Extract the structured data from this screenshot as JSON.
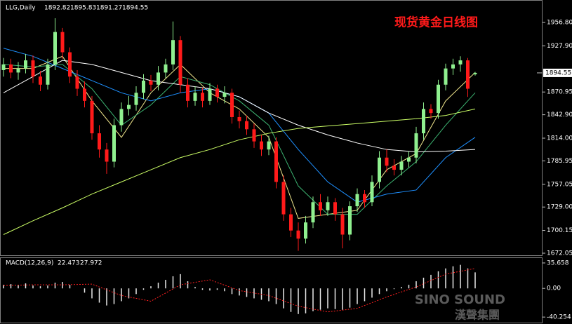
{
  "chart_data": {
    "type": "candlestick",
    "title": "现货黄金日线图",
    "symbol": "LLG,Daily",
    "up_color": "#8ff08f",
    "down_color": "#ff1a1a",
    "open": [
      1898,
      1905,
      1895,
      1900,
      1910,
      1890,
      1880,
      1905,
      1945,
      1920,
      1890,
      1875,
      1860,
      1820,
      1800,
      1785,
      1830,
      1850,
      1855,
      1870,
      1885,
      1880,
      1895,
      1905,
      1935,
      1880,
      1860,
      1870,
      1860,
      1875,
      1865,
      1870,
      1840,
      1835,
      1825,
      1810,
      1800,
      1810,
      1760,
      1720,
      1700,
      1690,
      1710,
      1735,
      1725,
      1735,
      1720,
      1695,
      1730,
      1745,
      1735,
      1760,
      1790,
      1780,
      1775,
      1785,
      1790,
      1820,
      1850,
      1845,
      1880,
      1900,
      1905,
      1910,
      1892.82
    ],
    "high": [
      1913,
      1912,
      1908,
      1918,
      1916,
      1897,
      1912,
      1962,
      1950,
      1926,
      1898,
      1884,
      1866,
      1830,
      1808,
      1838,
      1858,
      1866,
      1878,
      1893,
      1892,
      1903,
      1912,
      1958,
      1940,
      1888,
      1878,
      1876,
      1882,
      1880,
      1878,
      1875,
      1848,
      1842,
      1832,
      1818,
      1817,
      1815,
      1768,
      1728,
      1710,
      1718,
      1742,
      1745,
      1742,
      1740,
      1728,
      1736,
      1752,
      1750,
      1768,
      1798,
      1800,
      1788,
      1792,
      1798,
      1828,
      1858,
      1856,
      1886,
      1906,
      1912,
      1915,
      1913,
      1895.83
    ],
    "low": [
      1890,
      1888,
      1886,
      1894,
      1882,
      1872,
      1874,
      1898,
      1912,
      1882,
      1866,
      1852,
      1812,
      1790,
      1770,
      1778,
      1822,
      1842,
      1848,
      1862,
      1872,
      1873,
      1888,
      1898,
      1870,
      1852,
      1854,
      1852,
      1855,
      1858,
      1857,
      1832,
      1826,
      1818,
      1802,
      1792,
      1793,
      1752,
      1712,
      1692,
      1675,
      1684,
      1703,
      1718,
      1718,
      1712,
      1678,
      1688,
      1723,
      1728,
      1730,
      1752,
      1772,
      1768,
      1768,
      1778,
      1783,
      1812,
      1838,
      1838,
      1873,
      1892,
      1896,
      1865,
      1891.27
    ],
    "close": [
      1905,
      1895,
      1900,
      1910,
      1890,
      1880,
      1905,
      1945,
      1920,
      1890,
      1875,
      1860,
      1820,
      1800,
      1785,
      1830,
      1850,
      1855,
      1870,
      1885,
      1880,
      1895,
      1905,
      1935,
      1880,
      1860,
      1870,
      1860,
      1875,
      1865,
      1870,
      1840,
      1835,
      1825,
      1810,
      1800,
      1810,
      1760,
      1720,
      1700,
      1690,
      1710,
      1735,
      1725,
      1735,
      1720,
      1695,
      1730,
      1745,
      1735,
      1760,
      1790,
      1780,
      1775,
      1785,
      1790,
      1820,
      1850,
      1845,
      1880,
      1900,
      1905,
      1910,
      1875,
      1894.55
    ],
    "ylim": [
      1668.6,
      1984.5
    ],
    "yticks": [
      {
        "value": 1956.8,
        "label": "1956.80"
      },
      {
        "value": 1927.9,
        "label": "1927.90"
      },
      1870.95,
      {
        "value": 1842.9,
        "label": "1842.90"
      },
      {
        "value": 1814,
        "label": "1814.00"
      },
      1785.95,
      1757.05,
      {
        "value": 1729,
        "label": "1729.00"
      },
      1700.15,
      1672.05
    ],
    "overlay": {
      "x": [
        0,
        4,
        8,
        12,
        16,
        20,
        24,
        28,
        32,
        36,
        40,
        44,
        48,
        52,
        56,
        60,
        64
      ],
      "series": [
        {
          "color": "#f0e68c",
          "values": [
            1900,
            1900,
            1915,
            1860,
            1815,
            1870,
            1905,
            1870,
            1850,
            1815,
            1715,
            1720,
            1725,
            1775,
            1795,
            1860,
            1895
          ]
        },
        {
          "color": "#3cb371",
          "values": [
            1905,
            1902,
            1905,
            1875,
            1830,
            1855,
            1890,
            1880,
            1860,
            1830,
            1755,
            1720,
            1720,
            1755,
            1785,
            1830,
            1870
          ]
        },
        {
          "color": "#1e90ff",
          "values": [
            1925,
            1915,
            1900,
            1885,
            1870,
            1860,
            1870,
            1875,
            1865,
            1845,
            1800,
            1760,
            1735,
            1745,
            1750,
            1790,
            1815
          ]
        },
        {
          "color": "#ffffff",
          "values": [
            1870,
            1890,
            1910,
            1905,
            1895,
            1885,
            1880,
            1875,
            1865,
            1845,
            1830,
            1818,
            1808,
            1800,
            1797,
            1798,
            1800
          ]
        },
        {
          "color": "#ccff66",
          "values": [
            1695,
            1712,
            1728,
            1745,
            1760,
            1775,
            1790,
            1800,
            1812,
            1820,
            1826,
            1829,
            1832,
            1835,
            1838,
            1842,
            1850
          ]
        }
      ]
    },
    "macd": {
      "label": "MACD(12,26,9)",
      "ylim": [
        -48,
        42.5
      ],
      "yticks": [
        35.658,
        {
          "value": 0,
          "label": "0.00"
        },
        -40.254
      ],
      "histogram": {
        "color": "#e8e8e8",
        "values": [
          5,
          6,
          5,
          7,
          4,
          3,
          4,
          8,
          9,
          5,
          0,
          -6,
          -14,
          -20,
          -24,
          -22,
          -18,
          -14,
          -8,
          -2,
          3,
          8,
          12,
          17,
          20,
          10,
          2,
          -2,
          -3,
          -2,
          -4,
          -8,
          -10,
          -12,
          -14,
          -16,
          -18,
          -22,
          -28,
          -33,
          -36,
          -35,
          -32,
          -30,
          -28,
          -29,
          -30,
          -27,
          -22,
          -18,
          -13,
          -8,
          -4,
          -1,
          2,
          5,
          10,
          15,
          19,
          24,
          28,
          31,
          33,
          28,
          22.473
        ]
      },
      "signal": {
        "color": "#ff2020",
        "x": [
          0,
          4,
          8,
          12,
          16,
          20,
          24,
          28,
          32,
          36,
          40,
          44,
          48,
          52,
          56,
          60,
          64
        ],
        "values": [
          4,
          5,
          5,
          6,
          -10,
          -18,
          5,
          12,
          -3,
          -10,
          -25,
          -33,
          -28,
          -12,
          2,
          20,
          27.972
        ]
      }
    },
    "watermark": {
      "text": "SINO SOUND",
      "subtext": "漢聲集團"
    }
  }
}
